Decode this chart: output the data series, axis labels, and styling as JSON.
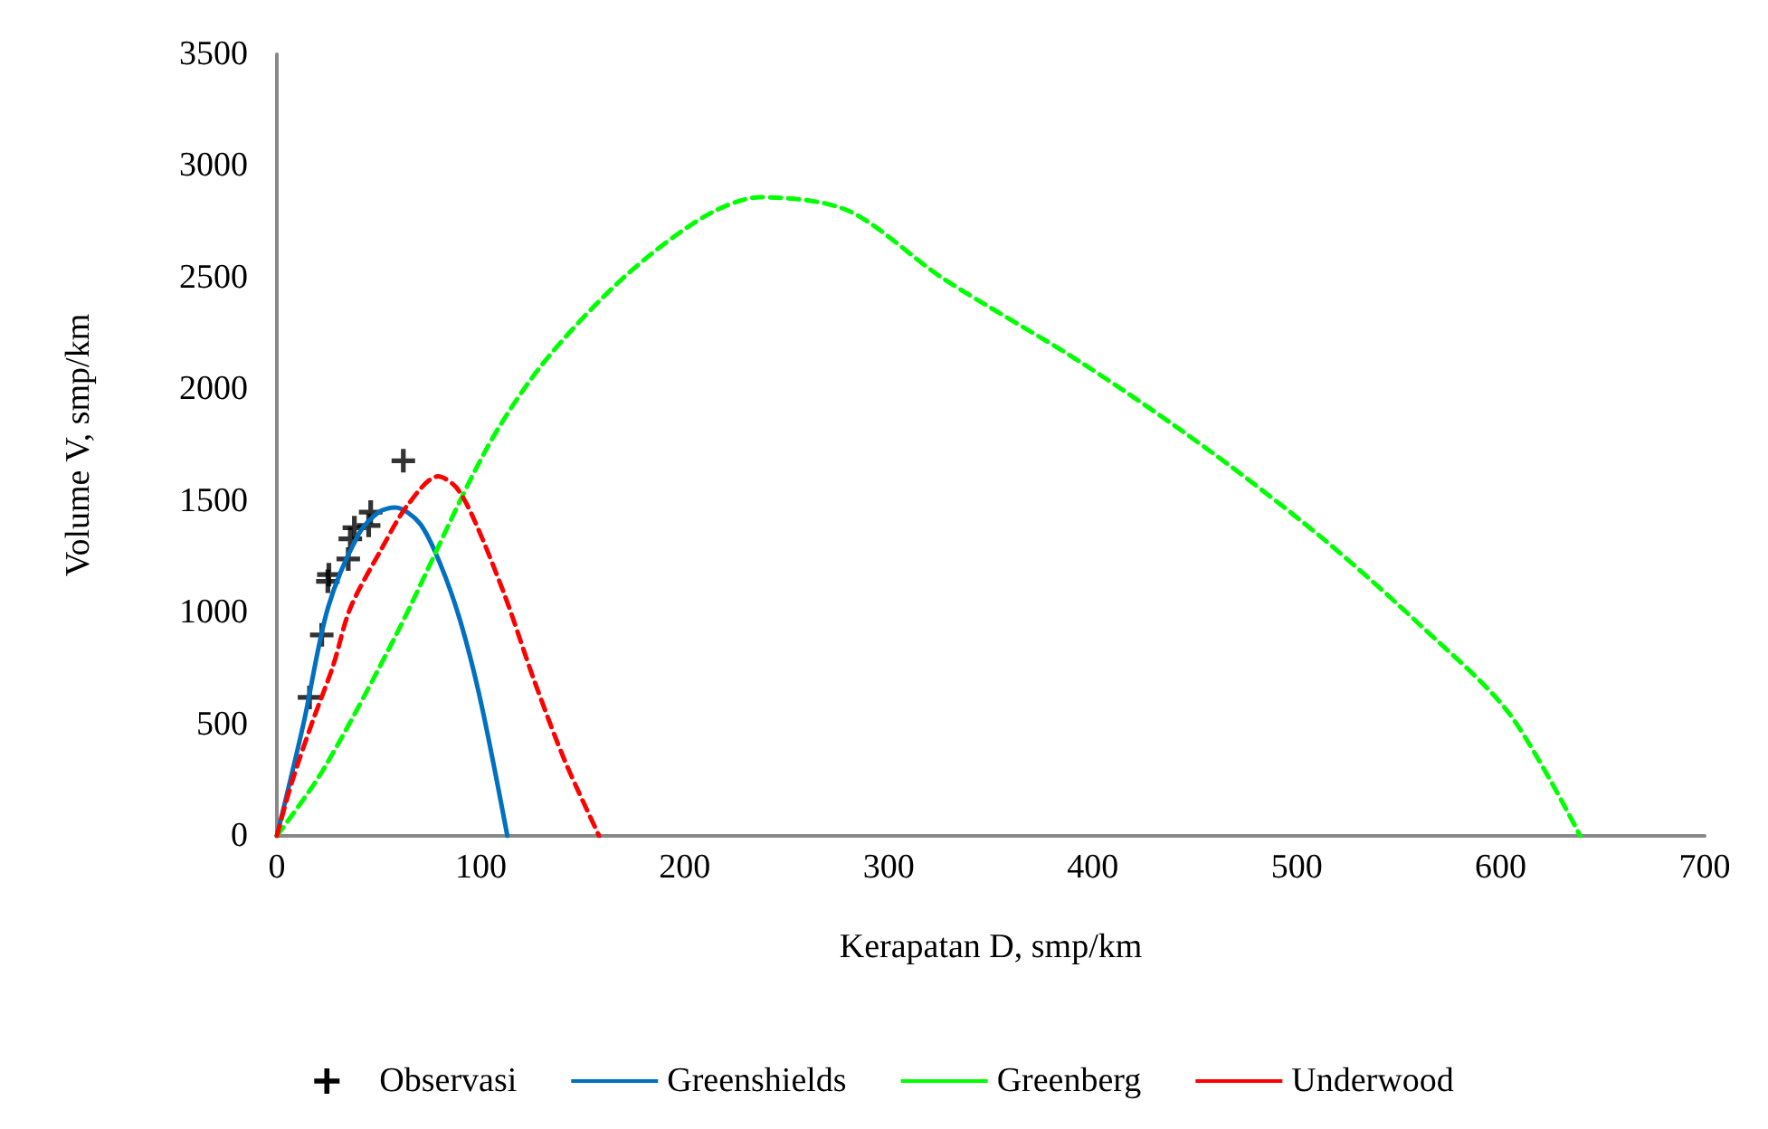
{
  "chart_data": {
    "type": "line",
    "xlabel": "Kerapatan D, smp/km",
    "ylabel": "Volume V, smp/km",
    "xlim": [
      0,
      700
    ],
    "xticks": [
      0,
      100,
      200,
      300,
      400,
      500,
      600,
      700
    ],
    "ylim": [
      0,
      3500
    ],
    "yticks": [
      0,
      500,
      1000,
      1500,
      2000,
      2500,
      3000,
      3500
    ],
    "grid": false,
    "legend": "bottom",
    "series": [
      {
        "name": "Observasi",
        "type": "scatter",
        "marker": "cross",
        "color": "#000000",
        "x": [
          16,
          22,
          25,
          25.5,
          35,
          36,
          38,
          45,
          46,
          62
        ],
        "values": [
          620,
          900,
          1140,
          1170,
          1240,
          1330,
          1380,
          1390,
          1450,
          1680
        ]
      },
      {
        "name": "Greenshields",
        "line_style": "solid",
        "marker": "none",
        "color": "#0070c0",
        "x": [
          0,
          13,
          25,
          40,
          50,
          58,
          70,
          80,
          90,
          100,
          113
        ],
        "values": [
          0,
          500,
          1020,
          1350,
          1450,
          1470,
          1400,
          1220,
          960,
          600,
          0
        ]
      },
      {
        "name": "Greenberg",
        "line_style": "dashed",
        "marker": "none",
        "color": "#00ff00",
        "x": [
          0,
          23,
          59,
          102,
          130,
          170,
          209,
          237,
          280,
          326,
          396,
          458,
          513,
          561,
          604,
          639
        ],
        "values": [
          0,
          300,
          910,
          1720,
          2110,
          2500,
          2770,
          2860,
          2800,
          2500,
          2110,
          1720,
          1330,
          940,
          550,
          0
        ]
      },
      {
        "name": "Underwood",
        "line_style": "dashed",
        "marker": "none",
        "color": "#ff0000",
        "x": [
          0,
          7,
          17,
          27.5,
          36,
          51,
          64,
          79,
          88,
          97,
          112,
          126,
          141,
          158
        ],
        "values": [
          0,
          230,
          500,
          760,
          1020,
          1280,
          1480,
          1610,
          1560,
          1410,
          1070,
          700,
          340,
          0
        ]
      }
    ]
  }
}
